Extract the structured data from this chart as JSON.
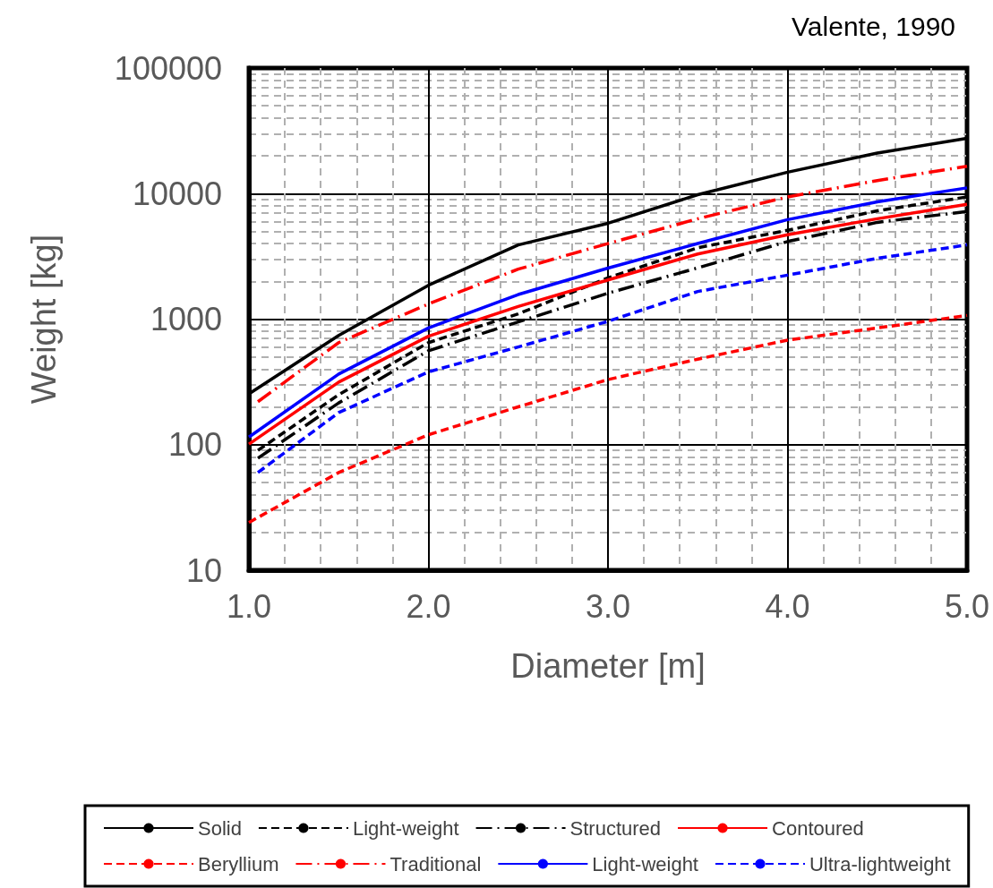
{
  "chart_data": {
    "type": "line",
    "xlabel": "Diameter [m]",
    "ylabel": "Weight [kg]",
    "annotations": [
      "Valente, 1990"
    ],
    "x": [
      1.0,
      1.5,
      2.0,
      2.5,
      3.0,
      3.5,
      4.0,
      4.5,
      5.0
    ],
    "series": [
      {
        "name": "Solid",
        "color": "#000000",
        "line_style": "solid",
        "values": [
          254,
          740,
          1860,
          3900,
          5800,
          9800,
          14800,
          21000,
          27600
        ]
      },
      {
        "name": "Light-weight",
        "color": "#000000",
        "line_style": "dashed",
        "x": [
          1.05,
          1.5,
          2.0,
          2.5,
          3.0,
          3.5,
          4.0,
          4.5,
          5.0
        ],
        "values": [
          90,
          250,
          650,
          1100,
          2130,
          3700,
          5100,
          7300,
          9400
        ]
      },
      {
        "name": "Structured",
        "color": "#000000",
        "line_style": "dashdot",
        "x": [
          1.05,
          1.5,
          2.0,
          2.5,
          3.0,
          3.5,
          4.0,
          4.5,
          5.0
        ],
        "values": [
          78,
          215,
          560,
          950,
          1610,
          2560,
          4150,
          5900,
          7200
        ]
      },
      {
        "name": "Contoured",
        "color": "#ff0000",
        "line_style": "solid",
        "values": [
          101,
          315,
          730,
          1260,
          2050,
          3300,
          4700,
          6300,
          8200
        ]
      },
      {
        "name": "Beryllium",
        "color": "#ff0000",
        "line_style": "dashed",
        "values": [
          24,
          60,
          120,
          200,
          330,
          480,
          680,
          850,
          1070
        ]
      },
      {
        "name": "Traditional",
        "color": "#ff0000",
        "line_style": "dashdot",
        "x": [
          1.05,
          1.5,
          2.0,
          2.5,
          3.0,
          3.5,
          4.0,
          4.5,
          5.0
        ],
        "values": [
          220,
          650,
          1320,
          2500,
          4000,
          6300,
          9400,
          12700,
          16500
        ]
      },
      {
        "name": "Light-weight",
        "color": "#0000ff",
        "line_style": "solid",
        "values": [
          115,
          365,
          850,
          1570,
          2550,
          4000,
          6200,
          8600,
          11100
        ]
      },
      {
        "name": "Ultra-lightweight",
        "color": "#0000ff",
        "line_style": "dashed",
        "x": [
          1.05,
          1.5,
          2.0,
          2.5,
          3.0,
          3.5,
          4.0,
          4.5,
          5.0
        ],
        "values": [
          60,
          180,
          380,
          600,
          960,
          1660,
          2240,
          3050,
          3900
        ]
      }
    ],
    "xlim": [
      1,
      5
    ],
    "xticks": [
      {
        "value": 1,
        "label": "1.0"
      },
      {
        "value": 2,
        "label": "2.0"
      },
      {
        "value": 3,
        "label": "3.0"
      },
      {
        "value": 4,
        "label": "4.0"
      },
      {
        "value": 5,
        "label": "5.0"
      }
    ],
    "ylim": [
      10,
      100000
    ],
    "yticks": [
      10,
      100,
      1000,
      10000,
      100000
    ],
    "log": "y",
    "grid": true,
    "legend": "bottom",
    "marker": "none"
  }
}
